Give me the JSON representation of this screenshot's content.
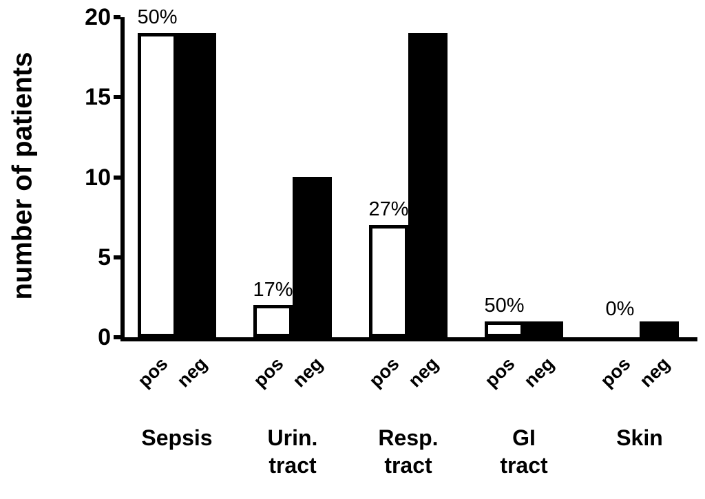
{
  "chart_data": {
    "type": "bar",
    "title": "",
    "ylabel": "number of patients",
    "xlabel": "",
    "ylim": [
      0,
      20
    ],
    "yticks": [
      0,
      5,
      10,
      15,
      20
    ],
    "grid": false,
    "legend_position": "none",
    "categories": [
      "Sepsis",
      "Urin. tract",
      "Resp. tract",
      "GI tract",
      "Skin"
    ],
    "category_lines": [
      [
        "Sepsis"
      ],
      [
        "Urin.",
        "tract"
      ],
      [
        "Resp.",
        "tract"
      ],
      [
        "GI",
        "tract"
      ],
      [
        "Skin"
      ]
    ],
    "bar_sublabels": [
      "pos",
      "neg"
    ],
    "series": [
      {
        "name": "pos",
        "fill": "#ffffff",
        "border": "#000000",
        "values": [
          19,
          2,
          7,
          1,
          0
        ]
      },
      {
        "name": "neg",
        "fill": "#000000",
        "border": "#000000",
        "values": [
          19,
          10,
          19,
          1,
          1
        ]
      }
    ],
    "pos_bar_percent_labels": [
      "50%",
      "17%",
      "27%",
      "50%",
      "0%"
    ],
    "colors": {
      "axis": "#000000",
      "background": "#ffffff",
      "text": "#000000"
    }
  }
}
